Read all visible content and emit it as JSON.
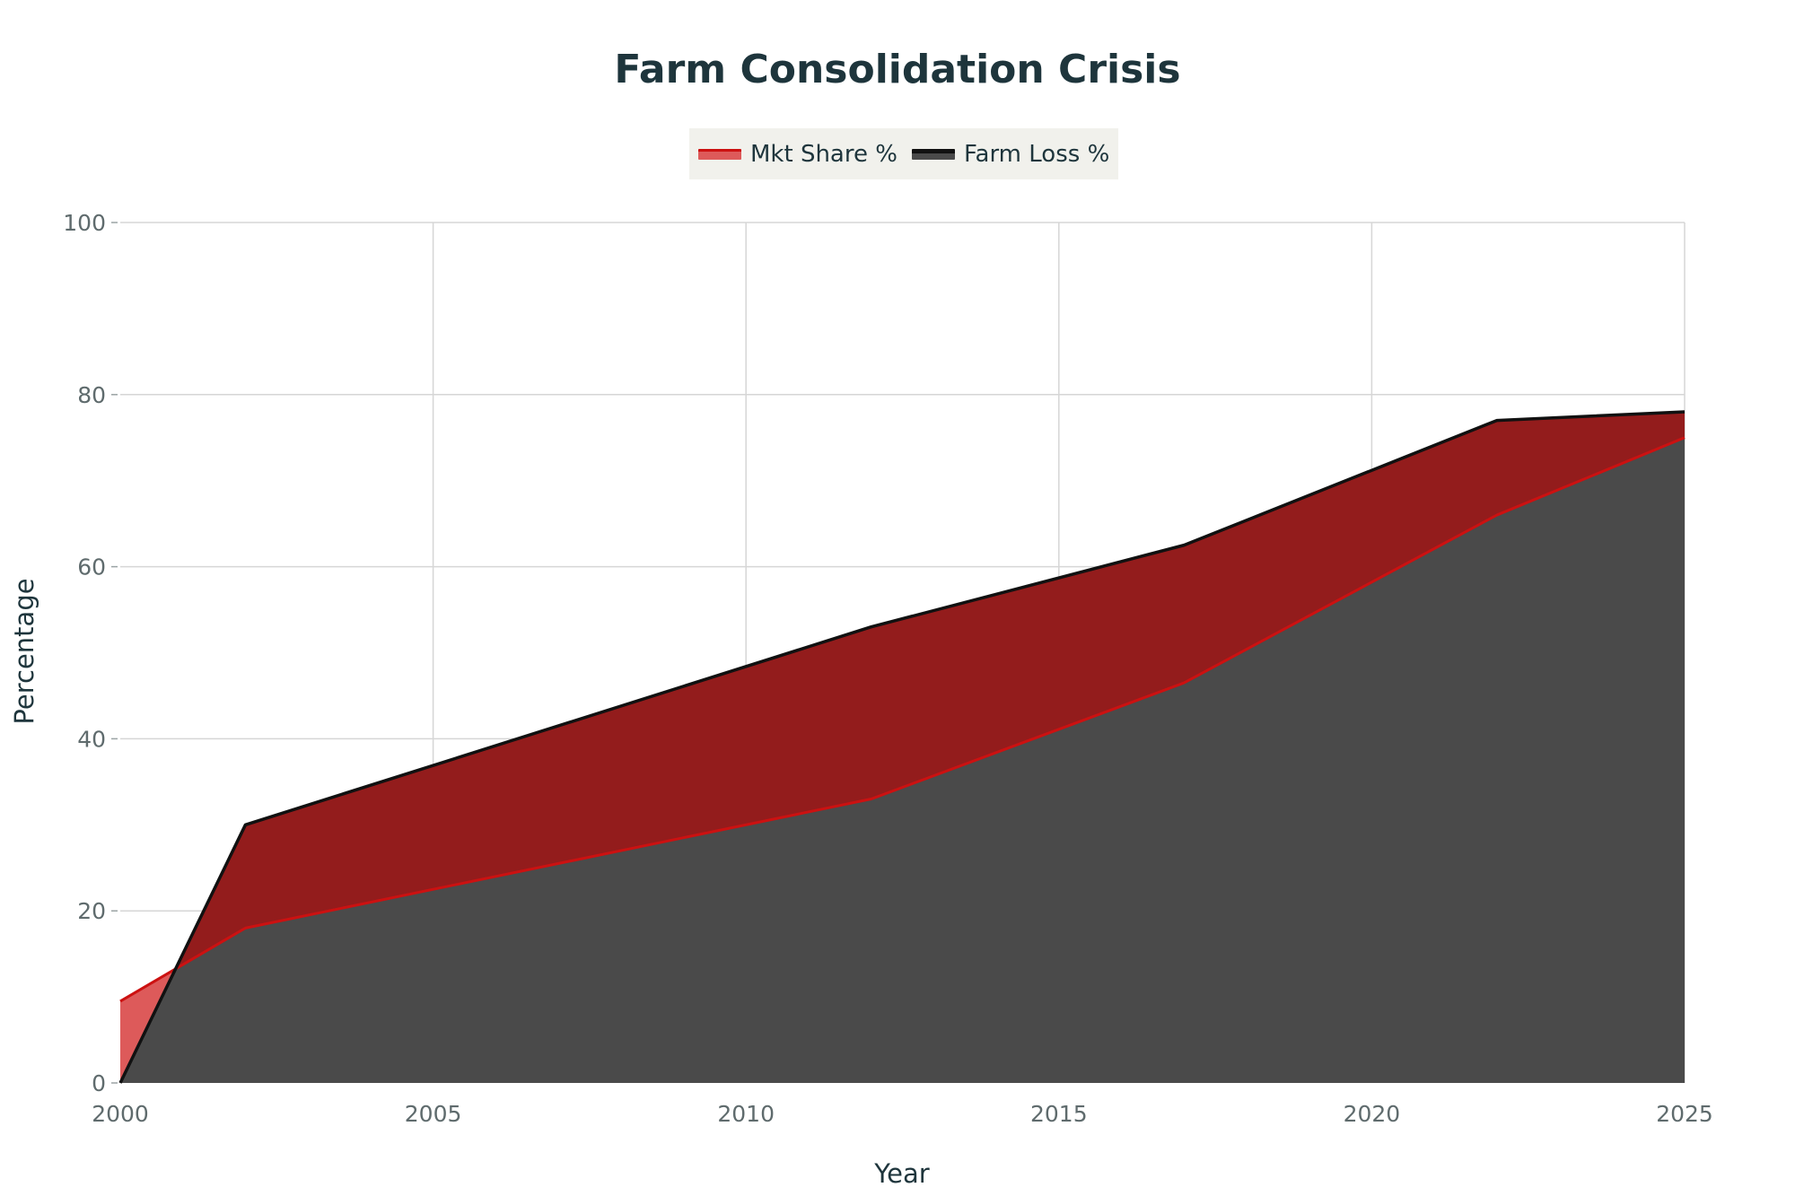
{
  "chart_data": {
    "type": "area",
    "title": "Farm Consolidation Crisis",
    "xlabel": "Year",
    "ylabel": "Percentage",
    "xlim": [
      2000,
      2025
    ],
    "ylim": [
      0,
      100
    ],
    "x_ticks": [
      2000,
      2005,
      2010,
      2015,
      2020,
      2025
    ],
    "y_ticks": [
      0,
      20,
      40,
      60,
      80,
      100
    ],
    "grid": true,
    "legend_position": "top-center",
    "series": [
      {
        "name": "Mkt Share %",
        "line_color": "#cc1111",
        "fill_color": "#dd5a5a",
        "points": [
          [
            2000,
            9.5
          ],
          [
            2002,
            18
          ],
          [
            2012,
            33
          ],
          [
            2017,
            46.5
          ],
          [
            2022,
            66
          ],
          [
            2025,
            75
          ]
        ]
      },
      {
        "name": "Farm Loss %",
        "line_color": "#111111",
        "fill_color": "#4a4a4a",
        "points": [
          [
            2000,
            0
          ],
          [
            2002,
            30
          ],
          [
            2012,
            53
          ],
          [
            2017,
            62.5
          ],
          [
            2022,
            77
          ],
          [
            2025,
            78
          ]
        ]
      }
    ],
    "overlap_fill_color": "#931c1c"
  }
}
